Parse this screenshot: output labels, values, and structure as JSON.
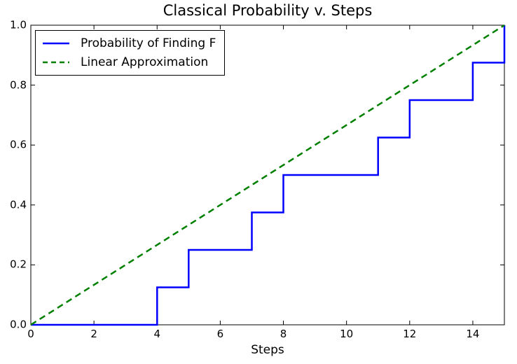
{
  "chart_data": {
    "type": "line",
    "title": "Classical Probability v. Steps",
    "xlabel": "Steps",
    "ylabel": "",
    "xlim": [
      0,
      15
    ],
    "ylim": [
      0.0,
      1.0
    ],
    "xticks": [
      "0",
      "2",
      "4",
      "6",
      "8",
      "10",
      "12",
      "14"
    ],
    "xtick_values": [
      0,
      2,
      4,
      6,
      8,
      10,
      12,
      14
    ],
    "yticks": [
      "0.0",
      "0.2",
      "0.4",
      "0.6",
      "0.8",
      "1.0"
    ],
    "ytick_values": [
      0.0,
      0.2,
      0.4,
      0.6,
      0.8,
      1.0
    ],
    "grid": false,
    "legend_position": "upper-left",
    "background_color": "#ffffff",
    "frame_color": "#000000",
    "series": [
      {
        "name": "Probability of Finding F",
        "color": "#0000ff",
        "style": "solid",
        "draw": "steps-post",
        "line_width": 2.5,
        "x": [
          0,
          1,
          2,
          3,
          4,
          5,
          6,
          7,
          8,
          9,
          10,
          11,
          12,
          13,
          14,
          15
        ],
        "y": [
          0,
          0,
          0,
          0,
          0.125,
          0.25,
          0.25,
          0.375,
          0.5,
          0.5,
          0.5,
          0.625,
          0.75,
          0.75,
          0.875,
          1.0
        ]
      },
      {
        "name": "Linear Approximation",
        "color": "#008000",
        "style": "dashed",
        "draw": "line",
        "line_width": 2.5,
        "x": [
          0,
          15
        ],
        "y": [
          0.0,
          1.0
        ]
      }
    ]
  }
}
